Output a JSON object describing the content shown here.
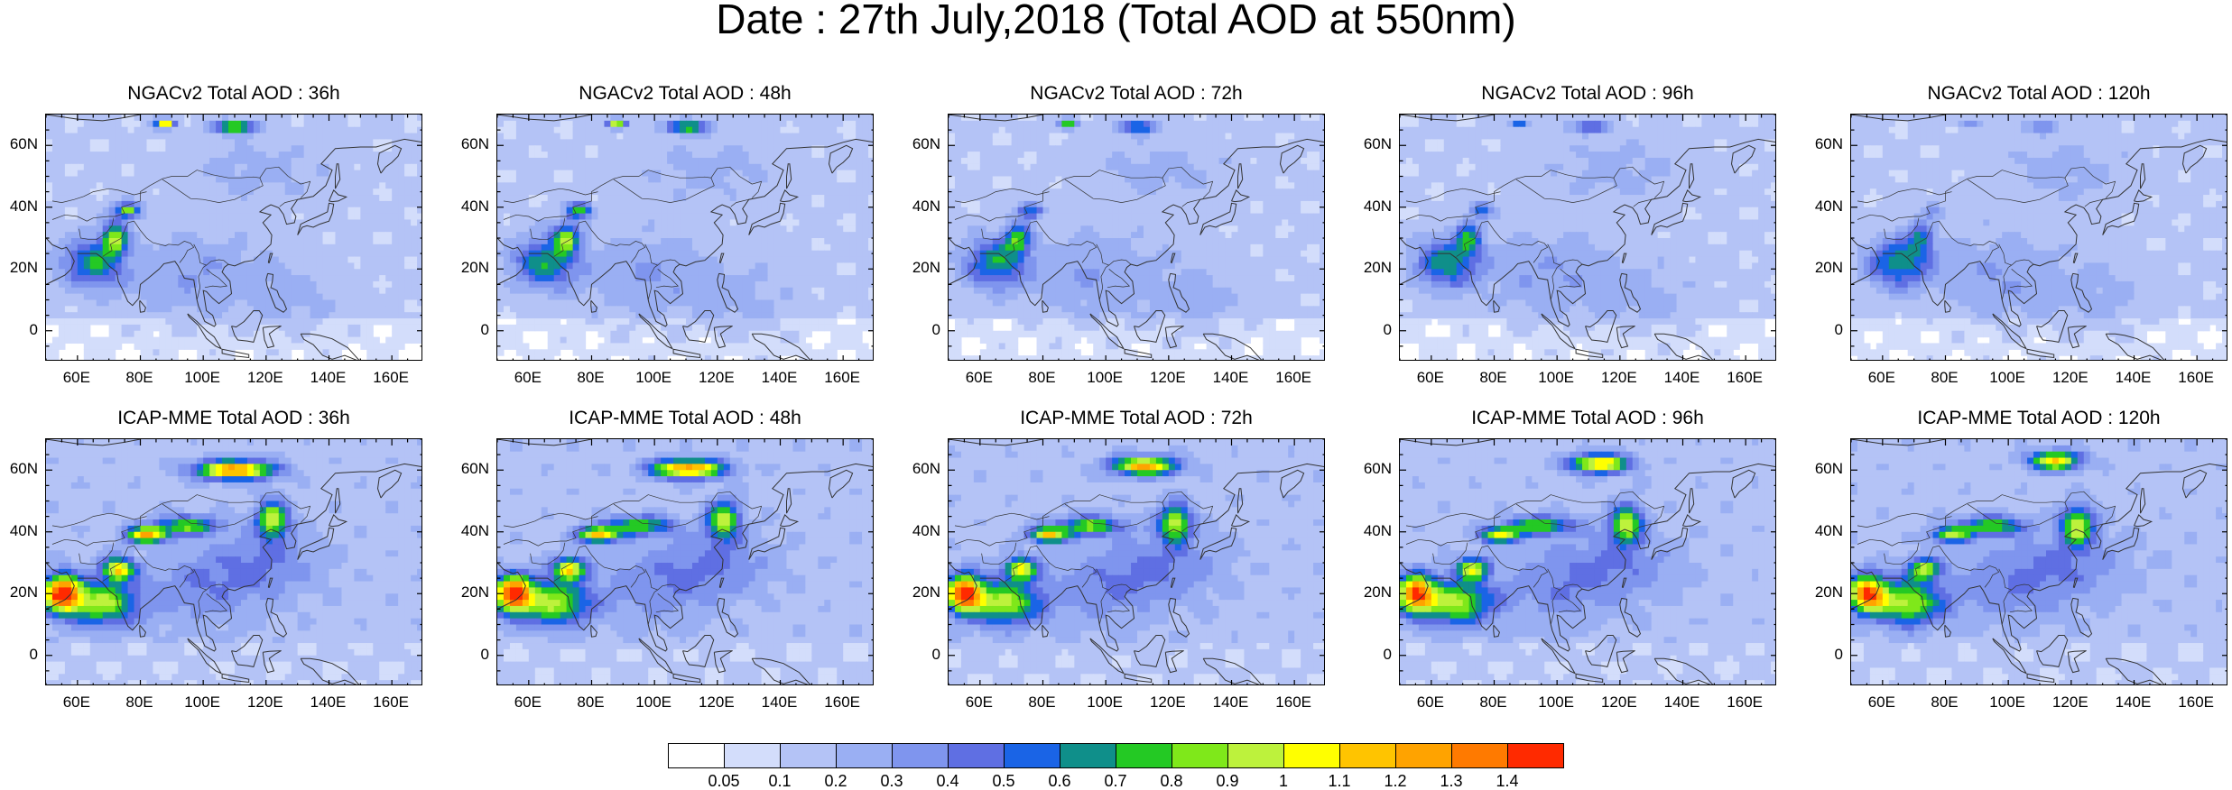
{
  "title": "Date : 27th July,2018 (Total AOD at 550nm)",
  "y_ticks": [
    "60N",
    "40N",
    "20N",
    "0"
  ],
  "x_ticks": [
    "60E",
    "80E",
    "100E",
    "120E",
    "140E",
    "160E"
  ],
  "panels": [
    {
      "title": "NGACv2 Total AOD : 36h",
      "model": "NGACv2",
      "lead": "36h"
    },
    {
      "title": "NGACv2 Total AOD : 48h",
      "model": "NGACv2",
      "lead": "48h"
    },
    {
      "title": "NGACv2 Total AOD : 72h",
      "model": "NGACv2",
      "lead": "72h"
    },
    {
      "title": "NGACv2 Total AOD : 96h",
      "model": "NGACv2",
      "lead": "96h"
    },
    {
      "title": "NGACv2 Total AOD : 120h",
      "model": "NGACv2",
      "lead": "120h"
    },
    {
      "title": "ICAP-MME Total AOD : 36h",
      "model": "ICAP-MME",
      "lead": "36h"
    },
    {
      "title": "ICAP-MME Total AOD : 48h",
      "model": "ICAP-MME",
      "lead": "48h"
    },
    {
      "title": "ICAP-MME Total AOD : 72h",
      "model": "ICAP-MME",
      "lead": "72h"
    },
    {
      "title": "ICAP-MME Total AOD : 96h",
      "model": "ICAP-MME",
      "lead": "96h"
    },
    {
      "title": "ICAP-MME Total AOD : 120h",
      "model": "ICAP-MME",
      "lead": "120h"
    }
  ],
  "colorbar": {
    "labels": [
      "0.05",
      "0.1",
      "0.2",
      "0.3",
      "0.4",
      "0.5",
      "0.6",
      "0.7",
      "0.8",
      "0.9",
      "1",
      "1.1",
      "1.2",
      "1.3",
      "1.4"
    ],
    "colors": [
      "#ffffff",
      "#d3ddfb",
      "#b4c3f6",
      "#9aaff3",
      "#7f95ee",
      "#5f6fe3",
      "#1a64e6",
      "#0f8f8a",
      "#24c924",
      "#7fe81a",
      "#bdf23c",
      "#ffff00",
      "#ffc400",
      "#ffa300",
      "#ff7a00",
      "#ff2a00"
    ]
  }
}
